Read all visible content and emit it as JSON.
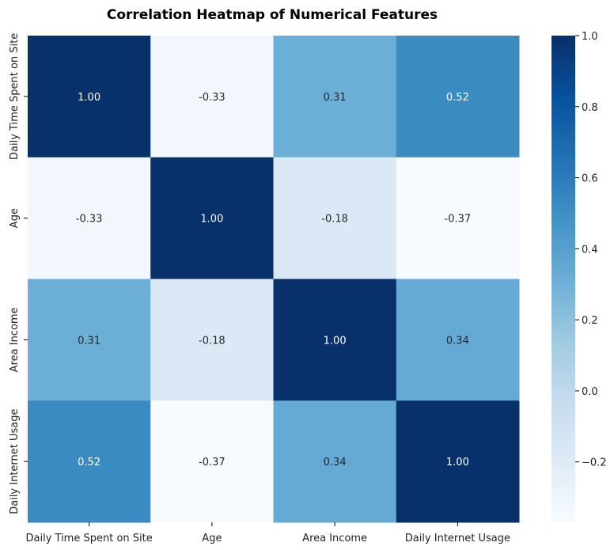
{
  "chart_data": {
    "type": "heatmap",
    "title": "Correlation Heatmap of Numerical Features",
    "xlabel": "",
    "ylabel": "",
    "x_categories": [
      "Daily Time Spent on Site",
      "Age",
      "Area Income",
      "Daily Internet Usage"
    ],
    "y_categories": [
      "Daily Time Spent on Site",
      "Age",
      "Area Income",
      "Daily Internet Usage"
    ],
    "values": [
      [
        1.0,
        -0.33,
        0.31,
        0.52
      ],
      [
        -0.33,
        1.0,
        -0.18,
        -0.37
      ],
      [
        0.31,
        -0.18,
        1.0,
        0.34
      ],
      [
        0.52,
        -0.37,
        0.34,
        1.0
      ]
    ],
    "annotations": [
      [
        "1.00",
        "-0.33",
        "0.31",
        "0.52"
      ],
      [
        "-0.33",
        "1.00",
        "-0.18",
        "-0.37"
      ],
      [
        "0.31",
        "-0.18",
        "1.00",
        "0.34"
      ],
      [
        "0.52",
        "-0.37",
        "0.34",
        "1.00"
      ]
    ],
    "colormap": "Blues",
    "colorbar": {
      "range": [
        -0.37,
        1.0
      ],
      "ticks": [
        -0.2,
        0.0,
        0.2,
        0.4,
        0.6,
        0.8,
        1.0
      ],
      "tick_labels": [
        "−0.2",
        "0.0",
        "0.2",
        "0.4",
        "0.6",
        "0.8",
        "1.0"
      ],
      "placement": "right"
    },
    "grid": false
  }
}
